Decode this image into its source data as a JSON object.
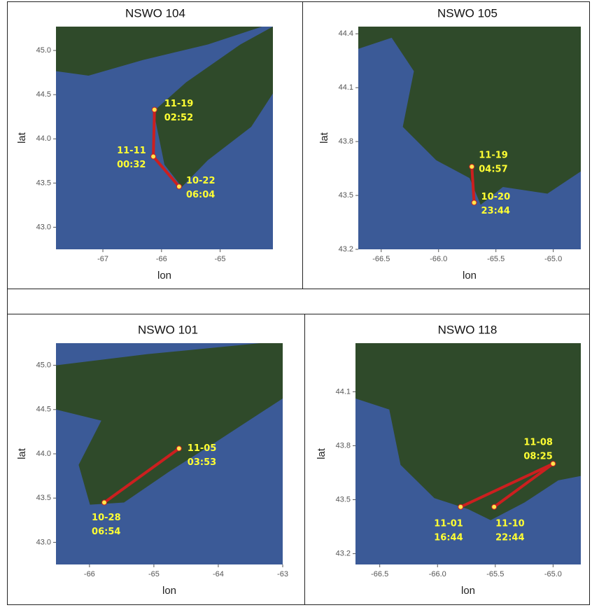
{
  "chart_data": [
    {
      "type": "line",
      "title": "NSWO 104",
      "x_label": "lon",
      "y_label": "lat",
      "x": [
        -65.7,
        -66.14,
        -66.12
      ],
      "y": [
        43.46,
        43.8,
        44.33
      ],
      "point_labels": [
        [
          "10-22",
          "06:04"
        ],
        [
          "11-11",
          "00:32"
        ],
        [
          "11-19",
          "02:52"
        ]
      ],
      "color": "#cc1f1f",
      "point_color": "#ffe64d",
      "xlim": [
        -67.8,
        -64.1
      ],
      "ylim": [
        42.75,
        45.27
      ],
      "xticks": [
        -67,
        -66,
        -65
      ],
      "yticks": [
        {
          "value": 43,
          "label": "43.0"
        },
        43.5,
        {
          "value": 44,
          "label": "44.0"
        },
        44.5,
        {
          "value": 45,
          "label": "45.0"
        }
      ]
    },
    {
      "type": "line",
      "title": "NSWO 105",
      "x_label": "lon",
      "y_label": "lat",
      "x": [
        -65.69,
        -65.71
      ],
      "y": [
        43.46,
        43.66
      ],
      "point_labels": [
        [
          "10-20",
          "23:44"
        ],
        [
          "11-19",
          "04:57"
        ]
      ],
      "color": "#cc1f1f",
      "point_color": "#ffe64d",
      "xlim": [
        -66.7,
        -64.76
      ],
      "ylim": [
        43.2,
        44.44
      ],
      "xticks": [
        -66.5,
        {
          "value": -66,
          "label": "-66.0"
        },
        -65.5,
        {
          "value": -65,
          "label": "-65.0"
        }
      ],
      "yticks": [
        43.2,
        43.5,
        43.8,
        44.1,
        44.4
      ]
    },
    {
      "type": "line",
      "title": "NSWO 101",
      "x_label": "lon",
      "y_label": "lat",
      "x": [
        -65.77,
        -64.61
      ],
      "y": [
        43.45,
        44.06
      ],
      "point_labels": [
        [
          "10-28",
          "06:54"
        ],
        [
          "11-05",
          "03:53"
        ]
      ],
      "color": "#cc1f1f",
      "point_color": "#ffe64d",
      "xlim": [
        -66.52,
        -63.0
      ],
      "ylim": [
        42.75,
        45.25
      ],
      "xticks": [
        -66,
        -65,
        -64,
        -63
      ],
      "yticks": [
        {
          "value": 43,
          "label": "43.0"
        },
        43.5,
        {
          "value": 44,
          "label": "44.0"
        },
        44.5,
        {
          "value": 45,
          "label": "45.0"
        }
      ]
    },
    {
      "type": "line",
      "title": "NSWO 118",
      "x_label": "lon",
      "y_label": "lat",
      "x": [
        -65.8,
        -65.0,
        -65.51
      ],
      "y": [
        43.46,
        43.7,
        43.46
      ],
      "point_labels": [
        [
          "11-01",
          "16:44"
        ],
        [
          "11-08",
          "08:25"
        ],
        [
          "11-10",
          "22:44"
        ]
      ],
      "color": "#cc1f1f",
      "point_color": "#ffe64d",
      "xlim": [
        -66.71,
        -64.76
      ],
      "ylim": [
        43.14,
        44.37
      ],
      "xticks": [
        -66.5,
        {
          "value": -66,
          "label": "-66.0"
        },
        -65.5,
        {
          "value": -65,
          "label": "-65.0"
        }
      ],
      "yticks": [
        43.2,
        43.5,
        43.8,
        44.1
      ]
    }
  ]
}
